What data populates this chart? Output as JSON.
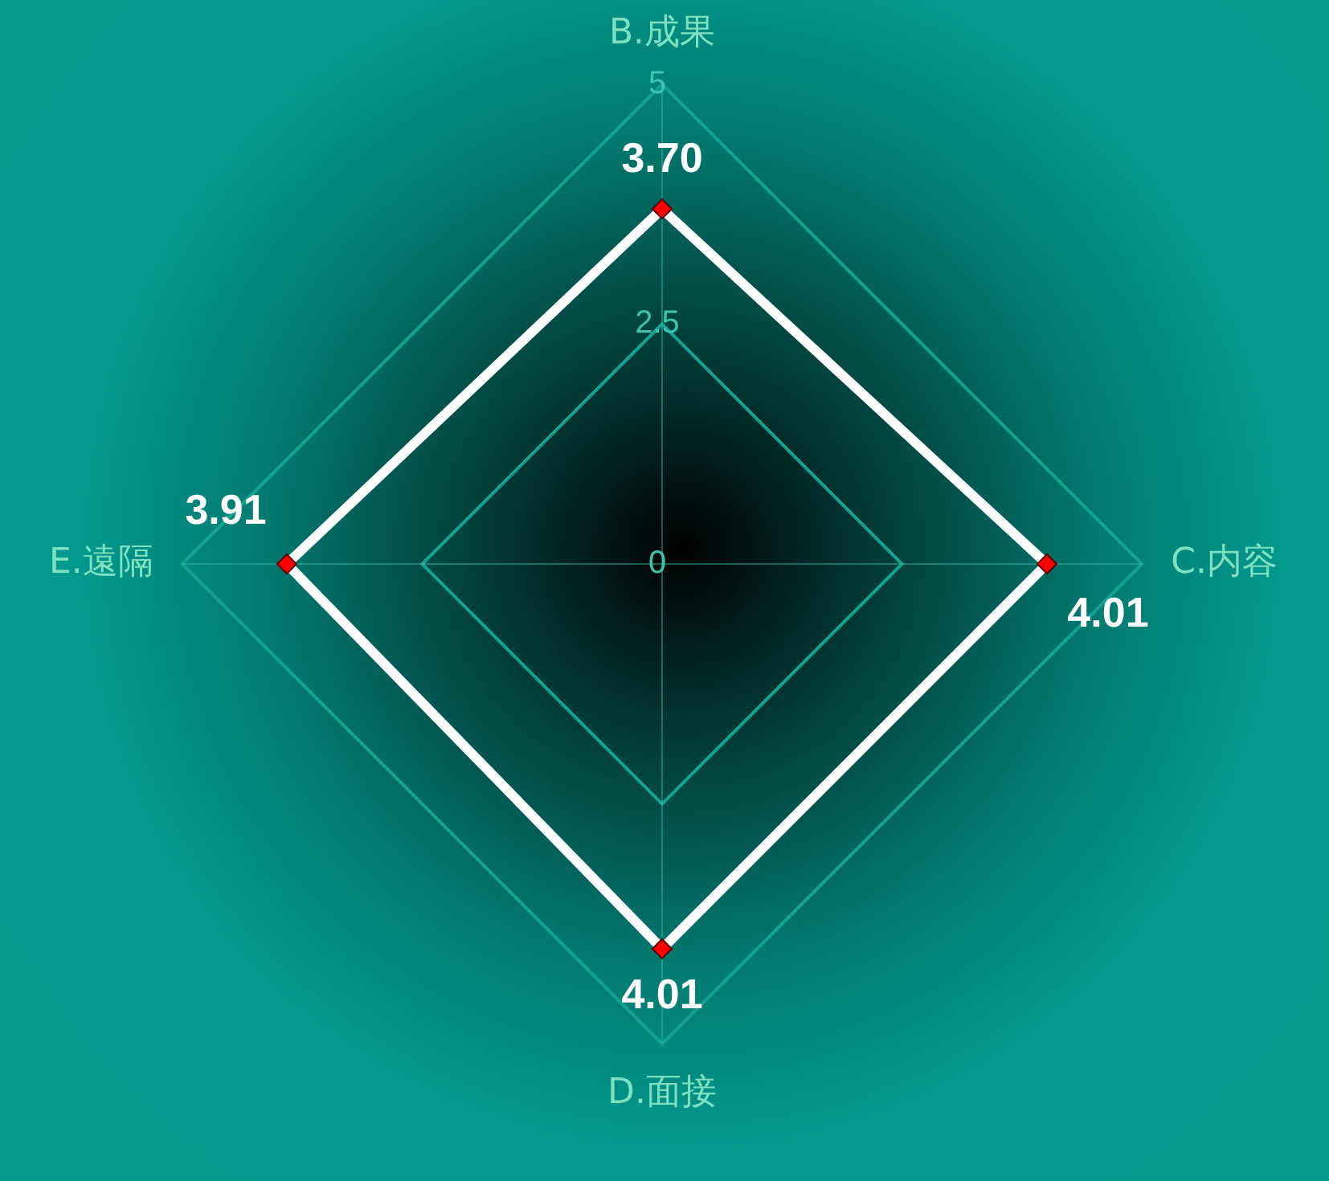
{
  "chart_data": {
    "type": "radar",
    "categories": [
      "B.成果",
      "C.内容",
      "D.面接",
      "E.遠隔"
    ],
    "series": [
      {
        "color": "#ffffff",
        "values": [
          3.7,
          4.01,
          4.01,
          3.91
        ],
        "value_labels": [
          "3.70",
          "4.01",
          "4.01",
          "3.91"
        ]
      }
    ],
    "ylim": [
      0,
      5
    ],
    "yticks": [
      0,
      2.5,
      5
    ],
    "grid": true,
    "marker": "diamond",
    "data_labels": true,
    "legend": false
  }
}
